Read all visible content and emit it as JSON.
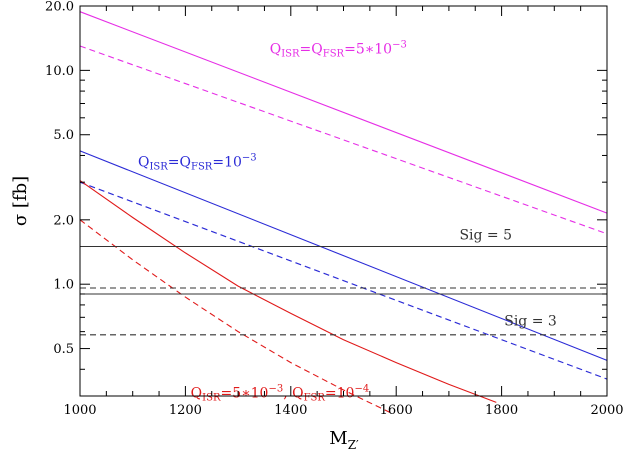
{
  "chart_data": {
    "type": "line",
    "title": "",
    "xlabel": "M",
    "xlabel_sub": "Z′",
    "ylabel": "σ  [fb]",
    "xlim": [
      1000,
      2000
    ],
    "ylim": [
      0.3,
      20.0
    ],
    "yscale": "log",
    "grid": false,
    "x_ticks": [
      1000,
      1200,
      1400,
      1600,
      1800,
      2000
    ],
    "x_tick_labels": [
      "1000",
      "1200",
      "1400",
      "1600",
      "1800",
      "2000"
    ],
    "y_ticks": [
      0.5,
      1.0,
      2.0,
      5.0,
      10.0,
      20.0
    ],
    "y_tick_labels": [
      "0.5",
      "1.0",
      "2.0",
      "5.0",
      "10.0",
      "20.0"
    ],
    "colors": {
      "magenta": "#e62ee6",
      "blue": "#2b2bd6",
      "red": "#e01a1a",
      "black": "#333333"
    },
    "series": [
      {
        "color": "magenta",
        "dash": "solid",
        "x": [
          1000,
          2000
        ],
        "y": [
          18.8,
          2.15
        ]
      },
      {
        "color": "magenta",
        "dash": "dashed",
        "x": [
          1000,
          2000
        ],
        "y": [
          13.0,
          1.72
        ]
      },
      {
        "color": "blue",
        "dash": "solid",
        "x": [
          1000,
          2000
        ],
        "y": [
          4.2,
          0.44
        ]
      },
      {
        "color": "blue",
        "dash": "dashed",
        "x": [
          1000,
          2000
        ],
        "y": [
          3.0,
          0.36
        ]
      },
      {
        "color": "red",
        "dash": "solid",
        "x": [
          1000,
          1100,
          1200,
          1300,
          1400,
          1500,
          1600,
          1700,
          1790
        ],
        "y": [
          3.05,
          2.05,
          1.4,
          0.98,
          0.73,
          0.55,
          0.43,
          0.34,
          0.28
        ]
      },
      {
        "color": "red",
        "dash": "dashed",
        "x": [
          1000,
          1100,
          1200,
          1300,
          1400,
          1500,
          1590
        ],
        "y": [
          2.0,
          1.3,
          0.87,
          0.6,
          0.43,
          0.32,
          0.25
        ]
      },
      {
        "color": "black",
        "dash": "solid",
        "x": [
          1000,
          2000
        ],
        "y": [
          1.5,
          1.5
        ]
      },
      {
        "color": "black",
        "dash": "dashed",
        "x": [
          1000,
          2000
        ],
        "y": [
          0.96,
          0.96
        ]
      },
      {
        "color": "black",
        "dash": "solid",
        "x": [
          1000,
          2000
        ],
        "y": [
          0.9,
          0.9
        ]
      },
      {
        "color": "black",
        "dash": "dashed",
        "x": [
          1000,
          2000
        ],
        "y": [
          0.58,
          0.58
        ]
      }
    ],
    "annotations": [
      {
        "name": "label-magenta",
        "color": "magenta",
        "x": 1360,
        "y": 12.0,
        "parts": [
          [
            "Q",
            ""
          ],
          [
            "ISR",
            "sub"
          ],
          [
            "=Q",
            ""
          ],
          [
            "FSR",
            "sub"
          ],
          [
            "=5∗10",
            ""
          ],
          [
            "−3",
            "sup"
          ]
        ]
      },
      {
        "name": "label-blue",
        "color": "blue",
        "x": 1110,
        "y": 3.55,
        "parts": [
          [
            "Q",
            ""
          ],
          [
            "ISR",
            "sub"
          ],
          [
            "=Q",
            ""
          ],
          [
            "FSR",
            "sub"
          ],
          [
            "=10",
            ""
          ],
          [
            "−3",
            "sup"
          ]
        ]
      },
      {
        "name": "label-red",
        "color": "red",
        "x": 1210,
        "y": 0.295,
        "parts": [
          [
            "Q",
            ""
          ],
          [
            "ISR",
            "sub"
          ],
          [
            "=5∗10",
            ""
          ],
          [
            "−3",
            "sup"
          ],
          [
            ",  Q",
            ""
          ],
          [
            "FSR",
            "sub"
          ],
          [
            "=10",
            ""
          ],
          [
            "−4",
            "sup"
          ]
        ]
      },
      {
        "name": "label-sig5",
        "color": "black",
        "x": 1720,
        "y": 1.62,
        "parts": [
          [
            "Sig  =  5",
            ""
          ]
        ]
      },
      {
        "name": "label-sig3",
        "color": "black",
        "x": 1805,
        "y": 0.64,
        "parts": [
          [
            "Sig  =  3",
            ""
          ]
        ]
      }
    ]
  }
}
